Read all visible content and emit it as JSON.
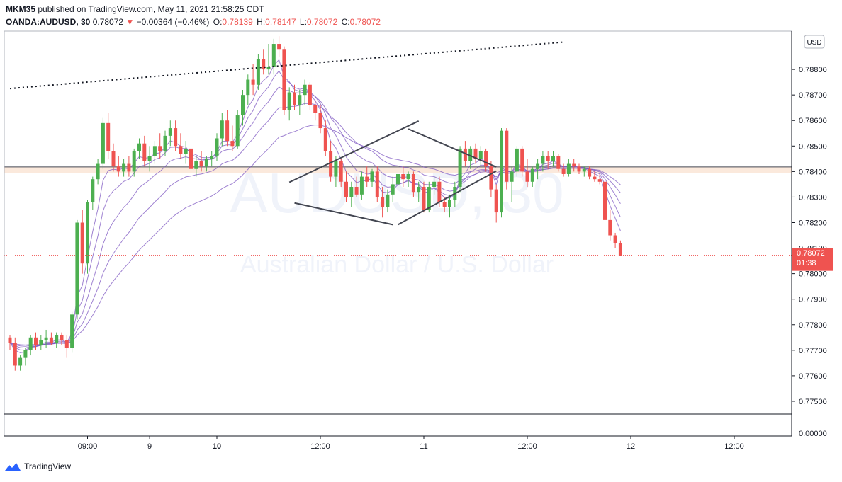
{
  "header": {
    "user": "MKM35",
    "published": "published on TradingView.com, May 11, 2021 21:58:25 CDT",
    "symbol": "OANDA:AUDUSD, 30",
    "last": "0.78072",
    "arrow": "▼",
    "change": "−0.00364 (−0.46%)",
    "o_label": "O:",
    "o_value": "0.78139",
    "h_label": "H:",
    "h_value": "0.78147",
    "l_label": "L:",
    "l_value": "0.78072",
    "c_label": "C:",
    "c_value": "0.78072"
  },
  "watermark": {
    "symbol": "AUDUSD, 30",
    "description": "Australian Dollar / U.S. Dollar"
  },
  "price_axis": {
    "currency": "USD",
    "last_price": "0.78072",
    "countdown": "01:38",
    "indicator_zero": "0.00000"
  },
  "footer": {
    "brand": "TradingView"
  },
  "colors": {
    "up": "#26a69a",
    "candle_up": "#4caf50",
    "down": "#ef5350",
    "ma": "#7e57c2",
    "zone": "#fbe9dc",
    "pattern_lines": "#434651"
  },
  "chart_data": {
    "type": "candlestick",
    "title": "",
    "timeframe": "30",
    "ylim": [
      0.7745,
      0.7895
    ],
    "y_ticks": [
      "0.77500",
      "0.77600",
      "0.77700",
      "0.77800",
      "0.77900",
      "0.78000",
      "0.78100",
      "0.78200",
      "0.78300",
      "0.78400",
      "0.78500",
      "0.78600",
      "0.78700",
      "0.78800"
    ],
    "x_ticks": [
      {
        "label": "09:00",
        "bold": false,
        "slot": 15
      },
      {
        "label": "9",
        "bold": false,
        "slot": 27
      },
      {
        "label": "10",
        "bold": true,
        "slot": 40
      },
      {
        "label": "12:00",
        "bold": false,
        "slot": 60
      },
      {
        "label": "11",
        "bold": false,
        "slot": 80
      },
      {
        "label": "12:00",
        "bold": false,
        "slot": 100
      },
      {
        "label": "12",
        "bold": false,
        "slot": 120
      },
      {
        "label": "12:00",
        "bold": false,
        "slot": 140
      }
    ],
    "horizontal_zone": [
      0.78394,
      0.78418
    ],
    "last_price_line": 0.78072,
    "candles": [
      [
        0.7775,
        0.7776,
        0.777,
        0.7773
      ],
      [
        0.7773,
        0.7775,
        0.7762,
        0.7764
      ],
      [
        0.7764,
        0.7768,
        0.7762,
        0.7767
      ],
      [
        0.7767,
        0.7771,
        0.7764,
        0.777
      ],
      [
        0.777,
        0.7776,
        0.7768,
        0.7775
      ],
      [
        0.7775,
        0.7777,
        0.777,
        0.7772
      ],
      [
        0.7772,
        0.7776,
        0.777,
        0.7774
      ],
      [
        0.7774,
        0.7778,
        0.7771,
        0.7775
      ],
      [
        0.7775,
        0.7777,
        0.7772,
        0.7773
      ],
      [
        0.7773,
        0.7777,
        0.7771,
        0.7776
      ],
      [
        0.7776,
        0.7777,
        0.7772,
        0.7774
      ],
      [
        0.7774,
        0.7776,
        0.7767,
        0.7771
      ],
      [
        0.7771,
        0.7785,
        0.7769,
        0.7784
      ],
      [
        0.7784,
        0.7821,
        0.7782,
        0.782
      ],
      [
        0.782,
        0.7825,
        0.78,
        0.7804
      ],
      [
        0.7804,
        0.7829,
        0.78,
        0.7828
      ],
      [
        0.7828,
        0.7838,
        0.7825,
        0.7837
      ],
      [
        0.7837,
        0.7845,
        0.7835,
        0.7843
      ],
      [
        0.7843,
        0.7861,
        0.7841,
        0.7859
      ],
      [
        0.7859,
        0.7863,
        0.7845,
        0.7848
      ],
      [
        0.7848,
        0.7851,
        0.784,
        0.7842
      ],
      [
        0.7842,
        0.7846,
        0.7838,
        0.784
      ],
      [
        0.784,
        0.7845,
        0.7838,
        0.7843
      ],
      [
        0.7843,
        0.7846,
        0.7838,
        0.784
      ],
      [
        0.784,
        0.7849,
        0.7838,
        0.7848
      ],
      [
        0.7848,
        0.7853,
        0.7845,
        0.7851
      ],
      [
        0.7851,
        0.7854,
        0.7842,
        0.7844
      ],
      [
        0.7844,
        0.785,
        0.784,
        0.7846
      ],
      [
        0.7846,
        0.7852,
        0.7843,
        0.785
      ],
      [
        0.785,
        0.7855,
        0.7845,
        0.7848
      ],
      [
        0.7848,
        0.7856,
        0.7846,
        0.7854
      ],
      [
        0.7854,
        0.786,
        0.785,
        0.7857
      ],
      [
        0.7857,
        0.786,
        0.7848,
        0.785
      ],
      [
        0.785,
        0.7855,
        0.7845,
        0.7847
      ],
      [
        0.7847,
        0.7852,
        0.7843,
        0.7849
      ],
      [
        0.7849,
        0.785,
        0.784,
        0.7841
      ],
      [
        0.7841,
        0.7846,
        0.7838,
        0.7844
      ],
      [
        0.7844,
        0.7848,
        0.784,
        0.7842
      ],
      [
        0.7842,
        0.7846,
        0.784,
        0.7845
      ],
      [
        0.7845,
        0.7848,
        0.7842,
        0.7846
      ],
      [
        0.7846,
        0.7855,
        0.7844,
        0.7853
      ],
      [
        0.7853,
        0.7863,
        0.785,
        0.786
      ],
      [
        0.786,
        0.7864,
        0.785,
        0.7852
      ],
      [
        0.7852,
        0.7858,
        0.7848,
        0.785
      ],
      [
        0.785,
        0.7864,
        0.7849,
        0.7862
      ],
      [
        0.7862,
        0.7872,
        0.7858,
        0.787
      ],
      [
        0.787,
        0.7878,
        0.7866,
        0.7876
      ],
      [
        0.7876,
        0.7882,
        0.787,
        0.7874
      ],
      [
        0.7874,
        0.7886,
        0.7872,
        0.7884
      ],
      [
        0.7884,
        0.7888,
        0.7878,
        0.788
      ],
      [
        0.788,
        0.789,
        0.7878,
        0.7881
      ],
      [
        0.7881,
        0.7892,
        0.7878,
        0.789
      ],
      [
        0.789,
        0.7893,
        0.7885,
        0.7888
      ],
      [
        0.7888,
        0.7889,
        0.7862,
        0.7864
      ],
      [
        0.7864,
        0.7873,
        0.786,
        0.7871
      ],
      [
        0.7871,
        0.7874,
        0.7864,
        0.7866
      ],
      [
        0.7866,
        0.7872,
        0.7862,
        0.787
      ],
      [
        0.787,
        0.7876,
        0.7866,
        0.7874
      ],
      [
        0.7874,
        0.7875,
        0.7864,
        0.7866
      ],
      [
        0.7866,
        0.7868,
        0.786,
        0.7863
      ],
      [
        0.7863,
        0.7866,
        0.7855,
        0.7857
      ],
      [
        0.7857,
        0.786,
        0.7846,
        0.7848
      ],
      [
        0.7848,
        0.7852,
        0.7836,
        0.7838
      ],
      [
        0.7838,
        0.7846,
        0.7834,
        0.7844
      ],
      [
        0.7844,
        0.7845,
        0.7834,
        0.7836
      ],
      [
        0.7836,
        0.784,
        0.7828,
        0.783
      ],
      [
        0.783,
        0.7836,
        0.7826,
        0.7834
      ],
      [
        0.7834,
        0.7838,
        0.783,
        0.7831
      ],
      [
        0.7831,
        0.784,
        0.7829,
        0.7838
      ],
      [
        0.7838,
        0.7842,
        0.7834,
        0.7836
      ],
      [
        0.7836,
        0.7841,
        0.7834,
        0.784
      ],
      [
        0.784,
        0.7842,
        0.7828,
        0.783
      ],
      [
        0.783,
        0.7834,
        0.7822,
        0.7826
      ],
      [
        0.7826,
        0.7833,
        0.7824,
        0.7831
      ],
      [
        0.7831,
        0.7838,
        0.7828,
        0.7835
      ],
      [
        0.7835,
        0.7841,
        0.7832,
        0.7839
      ],
      [
        0.7839,
        0.7842,
        0.7834,
        0.7837
      ],
      [
        0.7837,
        0.784,
        0.7834,
        0.7839
      ],
      [
        0.7839,
        0.784,
        0.783,
        0.7832
      ],
      [
        0.7832,
        0.7836,
        0.7828,
        0.7834
      ],
      [
        0.7834,
        0.7836,
        0.7824,
        0.7825
      ],
      [
        0.7825,
        0.7836,
        0.7824,
        0.7834
      ],
      [
        0.7834,
        0.7838,
        0.7831,
        0.7836
      ],
      [
        0.7836,
        0.7838,
        0.7826,
        0.7828
      ],
      [
        0.7828,
        0.783,
        0.7824,
        0.7826
      ],
      [
        0.7826,
        0.7831,
        0.7822,
        0.7829
      ],
      [
        0.7829,
        0.7836,
        0.7826,
        0.7834
      ],
      [
        0.7834,
        0.785,
        0.7832,
        0.7849
      ],
      [
        0.7849,
        0.7852,
        0.7842,
        0.7844
      ],
      [
        0.7844,
        0.785,
        0.7841,
        0.7849
      ],
      [
        0.7849,
        0.7851,
        0.7843,
        0.7845
      ],
      [
        0.7845,
        0.785,
        0.7842,
        0.7848
      ],
      [
        0.7848,
        0.7849,
        0.784,
        0.7842
      ],
      [
        0.7842,
        0.7844,
        0.783,
        0.7833
      ],
      [
        0.7833,
        0.7835,
        0.782,
        0.7824
      ],
      [
        0.7824,
        0.7857,
        0.7822,
        0.7856
      ],
      [
        0.7856,
        0.7857,
        0.7833,
        0.7836
      ],
      [
        0.7836,
        0.7842,
        0.7828,
        0.784
      ],
      [
        0.784,
        0.785,
        0.7838,
        0.7849
      ],
      [
        0.7849,
        0.785,
        0.7838,
        0.784
      ],
      [
        0.784,
        0.7845,
        0.7834,
        0.7836
      ],
      [
        0.7836,
        0.7842,
        0.7834,
        0.7841
      ],
      [
        0.7841,
        0.7845,
        0.7837,
        0.7843
      ],
      [
        0.7843,
        0.7848,
        0.784,
        0.7846
      ],
      [
        0.7846,
        0.7848,
        0.7841,
        0.7844
      ],
      [
        0.7844,
        0.7848,
        0.7842,
        0.7846
      ],
      [
        0.7846,
        0.7847,
        0.784,
        0.7841
      ],
      [
        0.7841,
        0.7843,
        0.7838,
        0.7839
      ],
      [
        0.7839,
        0.7845,
        0.7838,
        0.7843
      ],
      [
        0.7843,
        0.7845,
        0.784,
        0.7842
      ],
      [
        0.7842,
        0.7843,
        0.7839,
        0.784
      ],
      [
        0.784,
        0.7842,
        0.7838,
        0.7841
      ],
      [
        0.7841,
        0.7842,
        0.7837,
        0.7838
      ],
      [
        0.7838,
        0.784,
        0.7836,
        0.7837
      ],
      [
        0.7837,
        0.7839,
        0.7835,
        0.7836
      ],
      [
        0.7836,
        0.7837,
        0.782,
        0.7821
      ],
      [
        0.7821,
        0.7825,
        0.7813,
        0.7815
      ],
      [
        0.7815,
        0.7816,
        0.781,
        0.7812
      ],
      [
        0.7812,
        0.7813,
        0.7807,
        0.7807
      ]
    ],
    "ma_series_count": 5,
    "trendlines": [
      {
        "style": "dotted",
        "from": [
          0,
          0.78725
        ],
        "to": [
          107,
          0.78907
        ]
      },
      {
        "style": "solid",
        "from": [
          54,
          0.78358
        ],
        "to": [
          79,
          0.78598
        ]
      },
      {
        "style": "solid",
        "from": [
          55,
          0.78277
        ],
        "to": [
          74,
          0.78192
        ]
      },
      {
        "style": "solid",
        "from": [
          75,
          0.78192
        ],
        "to": [
          94,
          0.78402
        ]
      },
      {
        "style": "solid",
        "from": [
          77,
          0.78567
        ],
        "to": [
          94,
          0.78418
        ]
      }
    ]
  }
}
